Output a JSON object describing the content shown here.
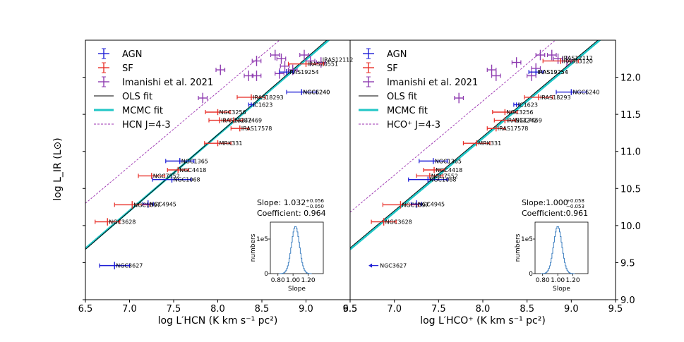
{
  "colors": {
    "agn": "#1f1fd6",
    "sf": "#e8312a",
    "imanishi": "#8e3bb0",
    "ols": "#000000",
    "mcmc": "#20c6c6",
    "transition": "#9b30b0",
    "hist": "#3d7fc0"
  },
  "chart_data": [
    {
      "type": "scatter",
      "xlabel": "log L′HCN (K km s⁻¹ pc²)",
      "ylabel": "log L_IR (L⊙)",
      "xlim": [
        6.5,
        9.5
      ],
      "ylim": [
        9.0,
        12.5
      ],
      "xticks": [
        "6.5",
        "7.0",
        "7.5",
        "8.0",
        "8.5",
        "9.0",
        "9.5"
      ],
      "yticks_right": [
        "9.0",
        "9.5",
        "10.0",
        "10.5",
        "11.0",
        "11.5",
        "12.0"
      ],
      "legend_position": "upper-left",
      "legend": [
        "AGN",
        "SF",
        "Imanishi et al. 2021",
        "OLS fit",
        "MCMC fit",
        "HCN J=4-3"
      ],
      "fit": {
        "slope_text": "Slope: 1.032",
        "slope_sup": "+0.056",
        "slope_sub": "−0.050",
        "coef_text": "Coefficient: 0.964"
      },
      "ols_line": {
        "slope": 1.032,
        "intercept": 2.97
      },
      "mcmc_line": {
        "slope": 1.02,
        "intercept": 3.06
      },
      "transition_line": {
        "slope": 1.0,
        "intercept": 3.8
      },
      "agn": [
        {
          "name": "NGC6240",
          "x": 8.95,
          "y": 11.8,
          "xerr": 0.17,
          "yerr": 0.04
        },
        {
          "name": "IRAS19254",
          "x": 8.78,
          "y": 12.07,
          "xerr": 0.08,
          "yerr": 0.04
        },
        {
          "name": "NGC1365",
          "x": 7.57,
          "y": 10.87,
          "xerr": 0.16,
          "yerr": 0.04
        },
        {
          "name": "NGC1068",
          "x": 7.48,
          "y": 10.62,
          "xerr": 0.22,
          "yerr": 0.04
        },
        {
          "name": "NGC4945",
          "x": 7.21,
          "y": 10.29,
          "xerr": 0.06,
          "yerr": 0.05
        },
        {
          "name": "NGC3627",
          "x": 6.83,
          "y": 9.46,
          "xerr": 0.17,
          "yerr": 0.05
        },
        {
          "name": "IC1623",
          "x": 8.38,
          "y": 11.63,
          "xerr": 0.03,
          "yerr": 0.03
        }
      ],
      "sf": [
        {
          "name": "IRAS20551",
          "x": 9.0,
          "y": 12.18,
          "xerr": 0.2,
          "yerr": 0.04
        },
        {
          "name": "IRAS18293",
          "x": 8.38,
          "y": 11.73,
          "xerr": 0.16,
          "yerr": 0.04
        },
        {
          "name": "NGC3256",
          "x": 8.0,
          "y": 11.53,
          "xerr": 0.14,
          "yerr": 0.04
        },
        {
          "name": "IRAS13242",
          "x": 8.02,
          "y": 11.42,
          "xerr": 0.12,
          "yerr": 0.04
        },
        {
          "name": "NGC7469",
          "x": 8.18,
          "y": 11.42,
          "xerr": 0.1,
          "yerr": 0.04
        },
        {
          "name": "IRAS17578",
          "x": 8.25,
          "y": 11.31,
          "xerr": 0.1,
          "yerr": 0.04
        },
        {
          "name": "MRK331",
          "x": 8.0,
          "y": 11.11,
          "xerr": 0.15,
          "yerr": 0.04
        },
        {
          "name": "NGC4418",
          "x": 7.55,
          "y": 10.75,
          "xerr": 0.12,
          "yerr": 0.04
        },
        {
          "name": "NGC7552",
          "x": 7.25,
          "y": 10.67,
          "xerr": 0.15,
          "yerr": 0.04
        },
        {
          "name": "NGC1097",
          "x": 7.03,
          "y": 10.28,
          "xerr": 0.2,
          "yerr": 0.05
        },
        {
          "name": "NGC3628",
          "x": 6.75,
          "y": 10.05,
          "xerr": 0.14,
          "yerr": 0.05
        }
      ],
      "imanishi": [
        {
          "x": 7.83,
          "y": 11.72
        },
        {
          "x": 8.03,
          "y": 12.1
        },
        {
          "x": 8.35,
          "y": 12.02
        },
        {
          "x": 8.44,
          "y": 12.02
        },
        {
          "x": 8.44,
          "y": 12.22
        },
        {
          "x": 8.65,
          "y": 12.3
        },
        {
          "x": 8.72,
          "y": 12.25
        },
        {
          "x": 8.76,
          "y": 12.15
        },
        {
          "x": 8.85,
          "y": 12.1
        },
        {
          "x": 8.98,
          "y": 12.3
        },
        {
          "x": 9.05,
          "y": 12.22
        },
        {
          "x": 9.17,
          "y": 12.2
        },
        {
          "x": 8.7,
          "y": 12.05
        }
      ],
      "labels_only": [
        {
          "name": "IRAS12112",
          "x": 9.17,
          "y": 12.24
        },
        {
          "name": "NGC6240",
          "x": 8.95,
          "y": 11.8
        }
      ],
      "inset": {
        "xlabel": "Slope",
        "ylabel": "numbers",
        "ytick_top": "1e5",
        "ytick_zero": "0",
        "xticks": [
          "0.80",
          "1.00",
          "1.20"
        ],
        "xmin": 0.7,
        "xmax": 1.4,
        "mean": 1.032,
        "sigma": 0.053
      }
    },
    {
      "type": "scatter",
      "xlabel": "log L′HCO⁺ (K km s⁻¹ pc²)",
      "ylabel": "log L_IR (L⊙)",
      "xlim": [
        6.5,
        9.5
      ],
      "ylim": [
        9.0,
        12.5
      ],
      "xticks": [
        "6.5",
        "7.0",
        "7.5",
        "8.0",
        "8.5",
        "9.0",
        "9.5"
      ],
      "yticks_right": [
        "9.0",
        "9.5",
        "10.0",
        "10.5",
        "11.0",
        "11.5",
        "12.0"
      ],
      "legend_position": "upper-left",
      "legend": [
        "AGN",
        "SF",
        "Imanishi et al. 2021",
        "OLS fit",
        "MCMC fit",
        "HCO⁺ J=4-3"
      ],
      "fit": {
        "slope_text": "Slope:1.000",
        "slope_sup": "+0.058",
        "slope_sub": "−0.053",
        "coef_text": "Coefficient:0.961"
      },
      "ols_line": {
        "slope": 1.0,
        "intercept": 3.2
      },
      "mcmc_line": {
        "slope": 1.0,
        "intercept": 3.18
      },
      "transition_line": {
        "slope": 1.0,
        "intercept": 3.68
      },
      "agn": [
        {
          "name": "NGC6240",
          "x": 9.0,
          "y": 11.8,
          "xerr": 0.17,
          "yerr": 0.04
        },
        {
          "name": "IRAS19254",
          "x": 8.6,
          "y": 12.07,
          "xerr": 0.08,
          "yerr": 0.04
        },
        {
          "name": "NGC1365",
          "x": 7.44,
          "y": 10.87,
          "xerr": 0.16,
          "yerr": 0.04
        },
        {
          "name": "NGC1068",
          "x": 7.38,
          "y": 10.62,
          "xerr": 0.22,
          "yerr": 0.04
        },
        {
          "name": "NGC4945",
          "x": 7.25,
          "y": 10.29,
          "xerr": 0.06,
          "yerr": 0.05
        },
        {
          "name": "IC1623",
          "x": 8.38,
          "y": 11.63,
          "xerr": 0.03,
          "yerr": 0.03
        }
      ],
      "agn_upper": {
        "name": "NGC3627",
        "x": 6.82,
        "y": 9.46
      },
      "sf": [
        {
          "name": "IRAS13120",
          "x": 8.88,
          "y": 12.22,
          "xerr": 0.2,
          "yerr": 0.04
        },
        {
          "name": "IRAS18293",
          "x": 8.63,
          "y": 11.73,
          "xerr": 0.16,
          "yerr": 0.04
        },
        {
          "name": "NGC3256",
          "x": 8.25,
          "y": 11.53,
          "xerr": 0.14,
          "yerr": 0.04
        },
        {
          "name": "IRAS13242",
          "x": 8.25,
          "y": 11.42,
          "xerr": 0.12,
          "yerr": 0.04
        },
        {
          "name": "IRAS17578",
          "x": 8.15,
          "y": 11.31,
          "xerr": 0.1,
          "yerr": 0.04
        },
        {
          "name": "MRK331",
          "x": 7.93,
          "y": 11.11,
          "xerr": 0.15,
          "yerr": 0.04
        },
        {
          "name": "NGC4418",
          "x": 7.45,
          "y": 10.75,
          "xerr": 0.12,
          "yerr": 0.04
        },
        {
          "name": "NGC7552",
          "x": 7.4,
          "y": 10.67,
          "xerr": 0.15,
          "yerr": 0.04
        },
        {
          "name": "NGC1097",
          "x": 7.07,
          "y": 10.28,
          "xerr": 0.2,
          "yerr": 0.05
        },
        {
          "name": "NGC3628",
          "x": 6.88,
          "y": 10.05,
          "xerr": 0.14,
          "yerr": 0.05
        }
      ],
      "imanishi": [
        {
          "x": 7.73,
          "y": 11.72
        },
        {
          "x": 8.1,
          "y": 12.1
        },
        {
          "x": 8.15,
          "y": 12.02
        },
        {
          "x": 8.38,
          "y": 12.2
        },
        {
          "x": 8.55,
          "y": 12.02
        },
        {
          "x": 8.6,
          "y": 12.12
        },
        {
          "x": 8.65,
          "y": 12.3
        },
        {
          "x": 8.78,
          "y": 12.3
        },
        {
          "x": 8.85,
          "y": 12.25
        },
        {
          "x": 8.95,
          "y": 12.22
        }
      ],
      "labels_only": [
        {
          "name": "IRAS12112",
          "x": 8.88,
          "y": 12.26
        },
        {
          "name": "IRAS19254",
          "x": 8.6,
          "y": 12.07
        },
        {
          "name": "NGC7469",
          "x": 8.35,
          "y": 11.42
        }
      ],
      "inset": {
        "xlabel": "Slope",
        "ylabel": "numbers",
        "ytick_top": "1e5",
        "ytick_zero": "0",
        "xticks": [
          "0.80",
          "1.00",
          "1.20"
        ],
        "xmin": 0.7,
        "xmax": 1.4,
        "mean": 1.0,
        "sigma": 0.055
      }
    }
  ]
}
